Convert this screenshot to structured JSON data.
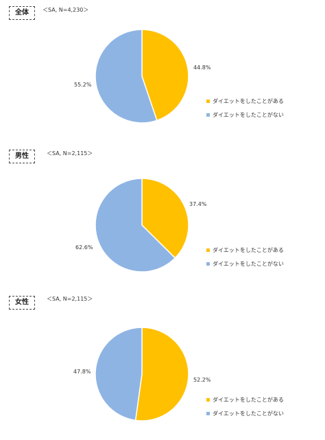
{
  "colors": {
    "yes": "#FFC000",
    "no": "#8EB4E3"
  },
  "legend": [
    "ダイエットをしたことがある",
    "ダイエットをしたことがない"
  ],
  "chart_data": [
    {
      "type": "pie",
      "title": "全体",
      "note": "＜SA, N=4,230＞",
      "categories": [
        "ダイエットをしたことがある",
        "ダイエットをしたことがない"
      ],
      "values": [
        44.8,
        55.2
      ],
      "labels": [
        "44.8%",
        "55.2%"
      ]
    },
    {
      "type": "pie",
      "title": "男性",
      "note": "＜SA, N=2,115＞",
      "categories": [
        "ダイエットをしたことがある",
        "ダイエットをしたことがない"
      ],
      "values": [
        37.4,
        62.6
      ],
      "labels": [
        "37.4%",
        "62.6%"
      ]
    },
    {
      "type": "pie",
      "title": "女性",
      "note": "＜SA, N=2,115＞",
      "categories": [
        "ダイエットをしたことがある",
        "ダイエットをしたことがない"
      ],
      "values": [
        52.2,
        47.8
      ],
      "labels": [
        "52.2%",
        "47.8%"
      ]
    }
  ]
}
